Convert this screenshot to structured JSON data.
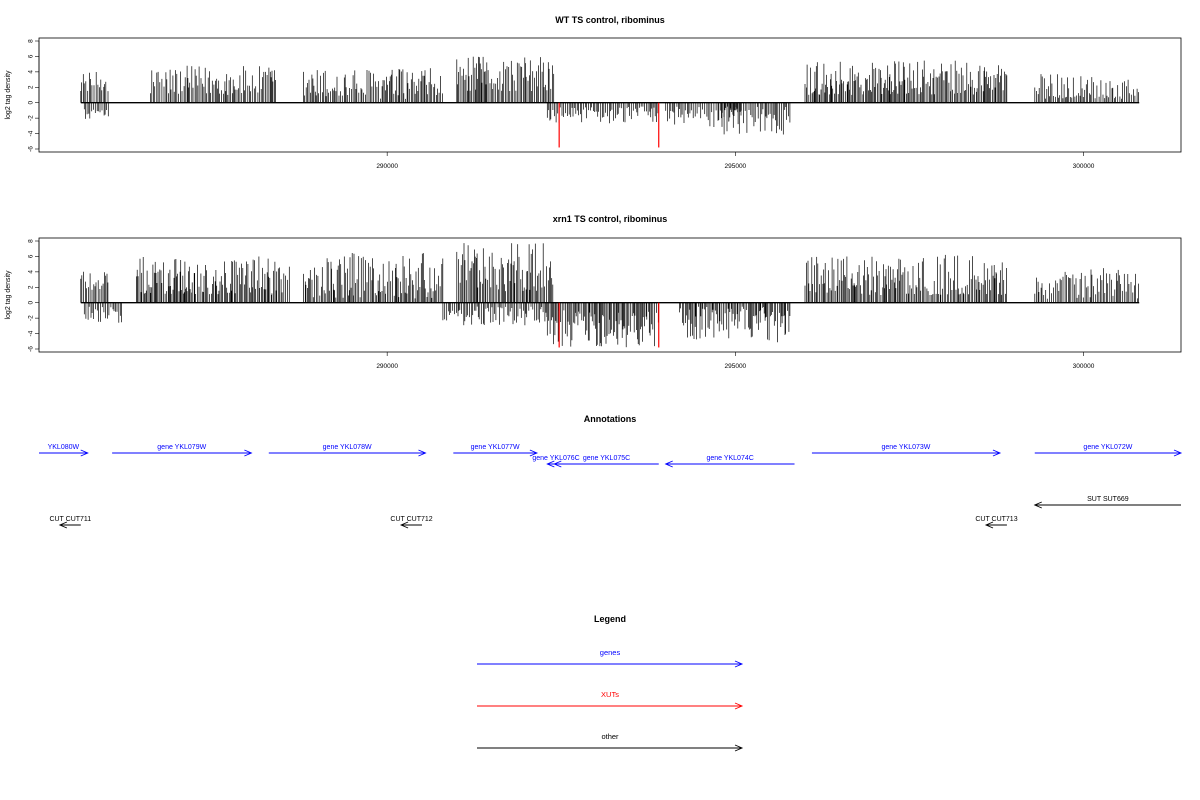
{
  "chart_data": [
    {
      "type": "bar",
      "title": "WT TS control, ribominus",
      "ylabel": "log2 tag density",
      "xlim": [
        285000,
        301400
      ],
      "ylim": [
        -6,
        8
      ],
      "yticks": [
        -6,
        -4,
        -2,
        0,
        2,
        4,
        6,
        8
      ],
      "xticks": [
        290000,
        295000,
        300000
      ],
      "xtick_labels": [
        "290000",
        "295000",
        "300000"
      ],
      "bar_color": "#000000",
      "highlight_color": "#ff0000",
      "highlights": [
        {
          "x": 292470,
          "value": -5.8
        },
        {
          "x": 293900,
          "value": -5.8
        }
      ],
      "segments": [
        {
          "start": 285600,
          "end": 286000,
          "min": 1.5,
          "max": 4
        },
        {
          "start": 285650,
          "end": 286000,
          "min": -2.2,
          "max": -0.5
        },
        {
          "start": 286600,
          "end": 288400,
          "min": 1,
          "max": 4.8
        },
        {
          "start": 288800,
          "end": 290800,
          "min": 0.5,
          "max": 4.5
        },
        {
          "start": 291000,
          "end": 292400,
          "min": 1.5,
          "max": 6
        },
        {
          "start": 292300,
          "end": 293900,
          "min": -2.8,
          "max": -0.5
        },
        {
          "start": 294000,
          "end": 295100,
          "min": -3.2,
          "max": -0.5
        },
        {
          "start": 294800,
          "end": 295800,
          "min": -4.2,
          "max": -0.5
        },
        {
          "start": 296000,
          "end": 298900,
          "min": 1,
          "max": 5.5
        },
        {
          "start": 299300,
          "end": 300800,
          "min": 0.5,
          "max": 3.8
        }
      ]
    },
    {
      "type": "bar",
      "title": "xrn1 TS control, ribominus",
      "ylabel": "log2 tag density",
      "xlim": [
        285000,
        301400
      ],
      "ylim": [
        -6,
        8
      ],
      "yticks": [
        -6,
        -4,
        -2,
        0,
        2,
        4,
        6,
        8
      ],
      "xticks": [
        290000,
        295000,
        300000
      ],
      "xtick_labels": [
        "290000",
        "295000",
        "300000"
      ],
      "bar_color": "#000000",
      "highlight_color": "#ff0000",
      "highlights": [
        {
          "x": 292470,
          "value": -5.8
        },
        {
          "x": 293900,
          "value": -5.8
        }
      ],
      "segments": [
        {
          "start": 285600,
          "end": 286000,
          "min": 1.5,
          "max": 5
        },
        {
          "start": 285650,
          "end": 286200,
          "min": -2.8,
          "max": -0.5
        },
        {
          "start": 286400,
          "end": 288600,
          "min": 1,
          "max": 6
        },
        {
          "start": 288800,
          "end": 290800,
          "min": 0.5,
          "max": 6.5
        },
        {
          "start": 291000,
          "end": 292400,
          "min": 1.5,
          "max": 7.8
        },
        {
          "start": 290800,
          "end": 292300,
          "min": -3,
          "max": -0.5
        },
        {
          "start": 292300,
          "end": 293900,
          "min": -5.8,
          "max": -1
        },
        {
          "start": 294200,
          "end": 295800,
          "min": -5.2,
          "max": -0.5
        },
        {
          "start": 296000,
          "end": 298900,
          "min": 1,
          "max": 6.2
        },
        {
          "start": 299300,
          "end": 300800,
          "min": 0.5,
          "max": 4.5
        }
      ]
    }
  ],
  "annotations": {
    "title": "Annotations",
    "features": [
      {
        "label": "YKL080W",
        "start": 285000,
        "end": 285700,
        "strand": "+",
        "row": 1,
        "class": "genes"
      },
      {
        "label": "gene YKL079W",
        "start": 286050,
        "end": 288050,
        "strand": "+",
        "row": 1,
        "class": "genes"
      },
      {
        "label": "gene YKL078W",
        "start": 288300,
        "end": 290550,
        "strand": "+",
        "row": 1,
        "class": "genes"
      },
      {
        "label": "gene YKL077W",
        "start": 290950,
        "end": 292150,
        "strand": "+",
        "row": 1,
        "class": "genes"
      },
      {
        "label": "gene YKL076C",
        "start": 292300,
        "end": 292550,
        "strand": "-",
        "row": 2,
        "class": "genes"
      },
      {
        "label": "gene YKL075C",
        "start": 292400,
        "end": 293900,
        "strand": "-",
        "row": 2,
        "class": "genes"
      },
      {
        "label": "gene YKL074C",
        "start": 294000,
        "end": 295850,
        "strand": "-",
        "row": 2,
        "class": "genes"
      },
      {
        "label": "gene YKL073W",
        "start": 296100,
        "end": 298800,
        "strand": "+",
        "row": 1,
        "class": "genes"
      },
      {
        "label": "gene YKL072W",
        "start": 299300,
        "end": 301400,
        "strand": "+",
        "row": 1,
        "class": "genes"
      },
      {
        "label": "SUT SUT669",
        "start": 299300,
        "end": 301400,
        "strand": "-",
        "row": 3,
        "class": "other"
      },
      {
        "label": "CUT CUT711",
        "start": 285300,
        "end": 285600,
        "strand": "-",
        "row": 4,
        "class": "other"
      },
      {
        "label": "CUT CUT712",
        "start": 290200,
        "end": 290500,
        "strand": "-",
        "row": 4,
        "class": "other"
      },
      {
        "label": "CUT CUT713",
        "start": 298600,
        "end": 298900,
        "strand": "-",
        "row": 4,
        "class": "other"
      }
    ]
  },
  "legend": {
    "title": "Legend",
    "items": [
      {
        "label": "genes",
        "color": "#0000ff"
      },
      {
        "label": "XUTs",
        "color": "#ff0000"
      },
      {
        "label": "other",
        "color": "#000000"
      }
    ]
  }
}
